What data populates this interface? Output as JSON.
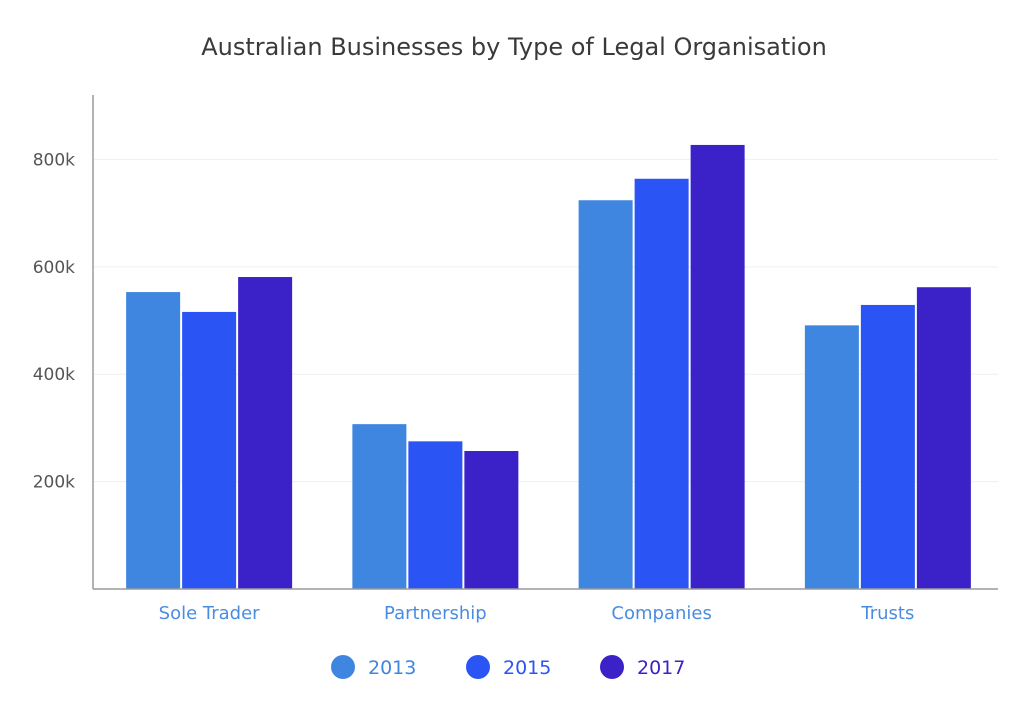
{
  "chart_data": {
    "type": "bar",
    "title": "Australian Businesses by Type of Legal Organisation",
    "xlabel": "",
    "ylabel": "",
    "categories": [
      "Sole Trader",
      "Partnership",
      "Companies",
      "Trusts"
    ],
    "series": [
      {
        "name": "2013",
        "color": "#3f86e0",
        "values": [
          553000,
          307000,
          724000,
          491000
        ]
      },
      {
        "name": "2015",
        "color": "#2b54f5",
        "values": [
          516000,
          275000,
          764000,
          529000
        ]
      },
      {
        "name": "2017",
        "color": "#3a22c8",
        "values": [
          581000,
          257000,
          827000,
          562000
        ]
      }
    ],
    "ylim": [
      0,
      920000
    ],
    "yticks": [
      200000,
      400000,
      600000,
      800000
    ],
    "ytick_labels": [
      "200k",
      "400k",
      "600k",
      "800k"
    ],
    "grid": true,
    "legend": "bottom-center"
  }
}
